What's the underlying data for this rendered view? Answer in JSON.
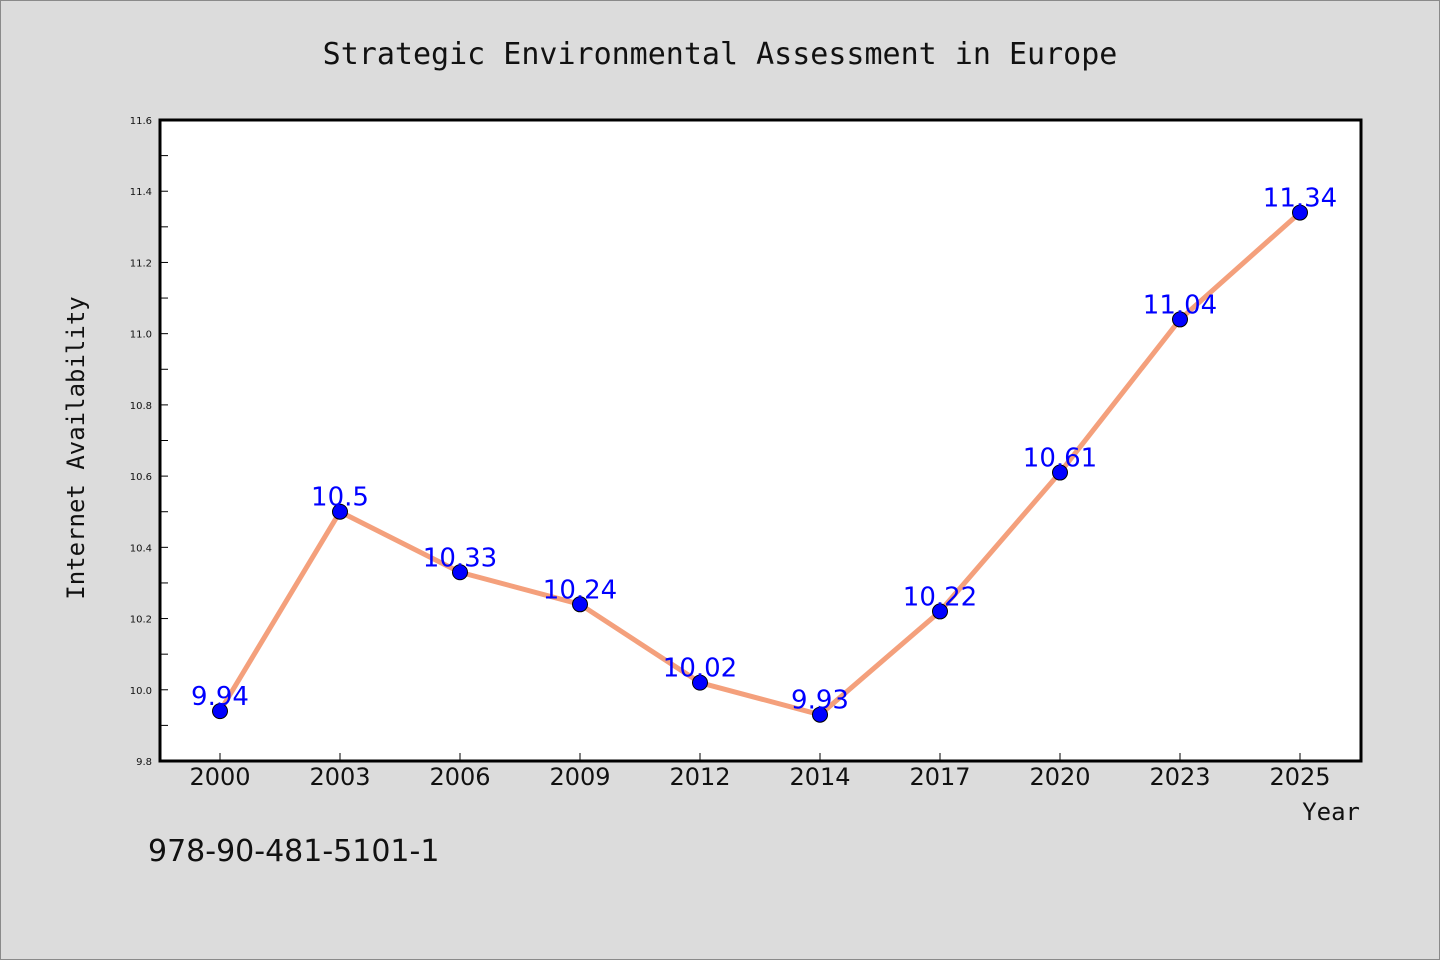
{
  "chart_data": {
    "type": "line",
    "title": "Strategic Environmental Assessment in Europe",
    "xlabel": "Year",
    "ylabel": "Internet Availability",
    "categories": [
      "2000",
      "2003",
      "2006",
      "2009",
      "2012",
      "2014",
      "2017",
      "2020",
      "2023",
      "2025"
    ],
    "values": [
      9.94,
      10.5,
      10.33,
      10.24,
      10.02,
      9.93,
      10.22,
      10.61,
      11.04,
      11.34
    ],
    "data_labels": [
      "9.94",
      "10.5",
      "10.33",
      "10.24",
      "10.02",
      "9.93",
      "10.22",
      "10.61",
      "11.04",
      "11.34"
    ],
    "ylim": [
      9.8,
      11.6
    ],
    "yticks": [
      9.8,
      10.0,
      10.2,
      10.4,
      10.6,
      10.8,
      11.0,
      11.2,
      11.4,
      11.6
    ],
    "ytick_labels": [
      "9.8",
      "10.0",
      "10.2",
      "10.4",
      "10.6",
      "10.8",
      "11.0",
      "11.2",
      "11.4",
      "11.6"
    ],
    "grid": false,
    "legend": "none",
    "colors": {
      "line": "#f4a07c",
      "marker": "#0000ff",
      "label": "#0000ff",
      "background": "#dcdcdc",
      "plot_background": "#ffffff"
    }
  },
  "footer": {
    "isbn": "978-90-481-5101-1"
  }
}
